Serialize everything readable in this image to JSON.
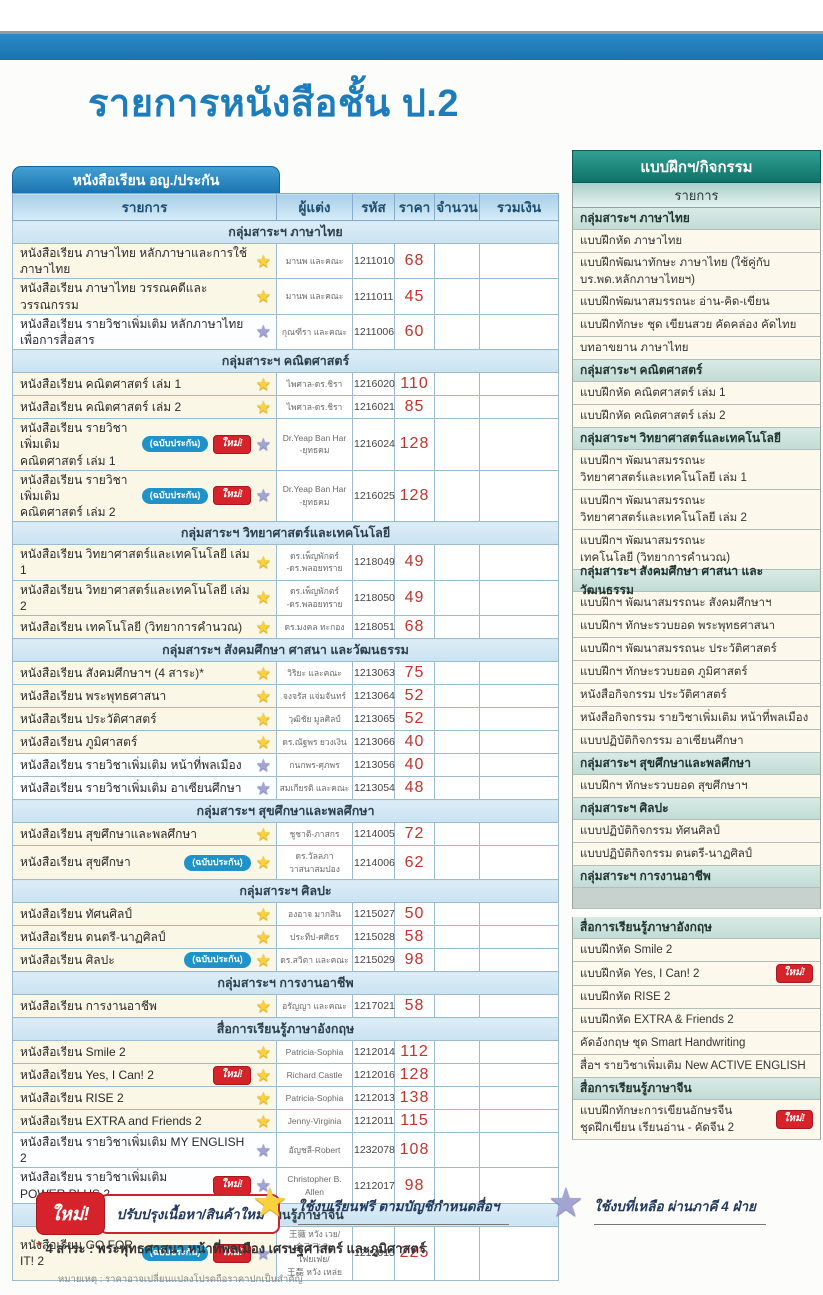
{
  "page": {
    "title": "รายการหนังสือชั้น ป.2"
  },
  "colors": {
    "primary_blue": "#1d7cba",
    "tab_blue": "#1b74b0",
    "group_row_blue": "#cde4f2",
    "cream_row": "#fbf7e7",
    "price_red": "#c2342e",
    "teal_header": "#0f7268",
    "new_badge_red": "#d6222b",
    "insured_badge_blue": "#1f93c9",
    "star_yellow": "#f7d23c",
    "star_purple": "#a2a4d2"
  },
  "main_table": {
    "tab_label": "หนังสือเรียน อญ./ประกัน",
    "columns": [
      "รายการ",
      "ผู้แต่ง",
      "รหัส",
      "ราคา",
      "จำนวน",
      "รวมเงิน"
    ],
    "badge_labels": {
      "insured": "(ฉบับประกัน)",
      "new": "ใหม่!"
    },
    "sections": [
      {
        "header": "กลุ่มสาระฯ ภาษาไทย",
        "rows": [
          {
            "name": "หนังสือเรียน ภาษาไทย หลักภาษาและการใช้ภาษาไทย",
            "star": "yellow",
            "badges": [],
            "author": "มานพ และคณะ",
            "code": "1211010",
            "price": "68",
            "bg": "cream",
            "h": "s"
          },
          {
            "name": "หนังสือเรียน ภาษาไทย วรรณคดีและวรรณกรรม",
            "star": "yellow",
            "badges": [],
            "author": "มานพ และคณะ",
            "code": "1211011",
            "price": "45",
            "bg": "cream",
            "h": "s"
          },
          {
            "name": "หนังสือเรียน รายวิชาเพิ่มเติม หลักภาษาไทยเพื่อการสื่อสาร",
            "star": "purple",
            "badges": [],
            "author": "กุณฑีรา และคณะ",
            "code": "1211006",
            "price": "60",
            "bg": "white",
            "h": "s"
          }
        ]
      },
      {
        "header": "กลุ่มสาระฯ คณิตศาสตร์",
        "rows": [
          {
            "name": "หนังสือเรียน คณิตศาสตร์ เล่ม 1",
            "star": "yellow",
            "badges": [],
            "author": "ไพศาล-ดร.ชิรา",
            "code": "1216020",
            "price": "110",
            "bg": "cream",
            "h": "s"
          },
          {
            "name": "หนังสือเรียน คณิตศาสตร์ เล่ม 2",
            "star": "yellow",
            "badges": [],
            "author": "ไพศาล-ดร.ชิรา",
            "code": "1216021",
            "price": "85",
            "bg": "cream",
            "h": "s"
          },
          {
            "name": "หนังสือเรียน รายวิชาเพิ่มเติม\nคณิตศาสตร์ เล่ม 1",
            "star": "purple",
            "badges": [
              "insured",
              "new"
            ],
            "author": "Dr.Yeap Ban Har\n-ยุทธคม",
            "code": "1216024",
            "price": "128",
            "bg": "cream",
            "h": "t"
          },
          {
            "name": "หนังสือเรียน รายวิชาเพิ่มเติม\nคณิตศาสตร์ เล่ม 2",
            "star": "purple",
            "badges": [
              "insured",
              "new"
            ],
            "author": "Dr.Yeap Ban Har\n-ยุทธคม",
            "code": "1216025",
            "price": "128",
            "bg": "cream",
            "h": "t"
          }
        ]
      },
      {
        "header": "กลุ่มสาระฯ วิทยาศาสตร์และเทคโนโลยี",
        "rows": [
          {
            "name": "หนังสือเรียน วิทยาศาสตร์และเทคโนโลยี เล่ม 1",
            "star": "yellow",
            "badges": [],
            "author": "ดร.เพ็ญพักตร์\n-ดร.พลอยทราย",
            "code": "1218049",
            "price": "49",
            "bg": "cream",
            "h": "m"
          },
          {
            "name": "หนังสือเรียน วิทยาศาสตร์และเทคโนโลยี เล่ม 2",
            "star": "yellow",
            "badges": [],
            "author": "ดร.เพ็ญพักตร์\n-ดร.พลอยทราย",
            "code": "1218050",
            "price": "49",
            "bg": "cream",
            "h": "m"
          },
          {
            "name": "หนังสือเรียน เทคโนโลยี (วิทยาการคำนวณ)",
            "star": "yellow",
            "badges": [],
            "author": "ดร.มงคล ทะกอง",
            "code": "1218051",
            "price": "68",
            "bg": "cream",
            "h": "s"
          }
        ]
      },
      {
        "header": "กลุ่มสาระฯ สังคมศึกษา ศาสนา และวัฒนธรรม",
        "rows": [
          {
            "name": "หนังสือเรียน สังคมศึกษาฯ (4 สาระ)*",
            "star": "yellow",
            "badges": [],
            "author": "วิริยะ และคณะ",
            "code": "1213063",
            "price": "75",
            "bg": "cream",
            "h": "s"
          },
          {
            "name": "หนังสือเรียน พระพุทธศาสนา",
            "star": "yellow",
            "badges": [],
            "author": "จงจรัส แจ่มจันทร์",
            "code": "1213064",
            "price": "52",
            "bg": "cream",
            "h": "s"
          },
          {
            "name": "หนังสือเรียน ประวัติศาสตร์",
            "star": "yellow",
            "badges": [],
            "author": "วุฒิชัย มูลศิลป์",
            "code": "1213065",
            "price": "52",
            "bg": "cream",
            "h": "s"
          },
          {
            "name": "หนังสือเรียน ภูมิศาสตร์",
            "star": "yellow",
            "badges": [],
            "author": "ดร.ณัฐพร ยวงเงิน",
            "code": "1213066",
            "price": "40",
            "bg": "cream",
            "h": "s"
          },
          {
            "name": "หนังสือเรียน รายวิชาเพิ่มเติม หน้าที่พลเมือง",
            "star": "purple",
            "badges": [],
            "author": "กนกพร-ศุภพร",
            "code": "1213056",
            "price": "40",
            "bg": "white",
            "h": "s"
          },
          {
            "name": "หนังสือเรียน รายวิชาเพิ่มเติม อาเซียนศึกษา",
            "star": "purple",
            "badges": [],
            "author": "สมเกียรติ และคณะ",
            "code": "1213054",
            "price": "48",
            "bg": "white",
            "h": "s"
          }
        ]
      },
      {
        "header": "กลุ่มสาระฯ สุขศึกษาและพลศึกษา",
        "rows": [
          {
            "name": "หนังสือเรียน สุขศึกษาและพลศึกษา",
            "star": "yellow",
            "badges": [],
            "author": "ชูชาติ-ภาสกร",
            "code": "1214005",
            "price": "72",
            "bg": "cream",
            "h": "s"
          },
          {
            "name": "หนังสือเรียน สุขศึกษา",
            "star": "yellow",
            "badges": [
              "insured"
            ],
            "author": "ดร.วัลลภา\nวาสนาสมปอง",
            "code": "1214006",
            "price": "62",
            "bg": "cream",
            "h": "m"
          }
        ]
      },
      {
        "header": "กลุ่มสาระฯ ศิลปะ",
        "rows": [
          {
            "name": "หนังสือเรียน ทัศนศิลป์",
            "star": "yellow",
            "badges": [],
            "author": "องอาจ มากสิน",
            "code": "1215027",
            "price": "50",
            "bg": "cream",
            "h": "s"
          },
          {
            "name": "หนังสือเรียน ดนตรี-นาฏศิลป์",
            "star": "yellow",
            "badges": [],
            "author": "ประทีป-ศศิธร",
            "code": "1215028",
            "price": "58",
            "bg": "cream",
            "h": "s"
          },
          {
            "name": "หนังสือเรียน ศิลปะ",
            "star": "yellow",
            "badges": [
              "insured"
            ],
            "author": "ดร.สวิตา และคณะ",
            "code": "1215029",
            "price": "98",
            "bg": "cream",
            "h": "s"
          }
        ]
      },
      {
        "header": "กลุ่มสาระฯ การงานอาชีพ",
        "rows": [
          {
            "name": "หนังสือเรียน การงานอาชีพ",
            "star": "yellow",
            "badges": [],
            "author": "อรัญญา และคณะ",
            "code": "1217021",
            "price": "58",
            "bg": "cream",
            "h": "s"
          }
        ]
      },
      {
        "header": "สื่อการเรียนรู้ภาษาอังกฤษ",
        "rows": [
          {
            "name": "หนังสือเรียน Smile 2",
            "star": "yellow",
            "badges": [],
            "author": "Patricia-Sophia",
            "code": "1212014",
            "price": "112",
            "bg": "cream",
            "h": "s"
          },
          {
            "name": "หนังสือเรียน Yes, I Can! 2",
            "star": "yellow",
            "badges": [
              "new"
            ],
            "author": "Richard Castle",
            "code": "1212016",
            "price": "128",
            "bg": "cream",
            "h": "s"
          },
          {
            "name": "หนังสือเรียน RISE 2",
            "star": "yellow",
            "badges": [],
            "author": "Patricia-Sophia",
            "code": "1212013",
            "price": "138",
            "bg": "cream",
            "h": "s"
          },
          {
            "name": "หนังสือเรียน EXTRA and Friends 2",
            "star": "yellow",
            "badges": [],
            "author": "Jenny-Virginia",
            "code": "1212011",
            "price": "115",
            "bg": "cream",
            "h": "s"
          },
          {
            "name": "หนังสือเรียน รายวิชาเพิ่มเติม MY ENGLISH 2",
            "star": "purple",
            "badges": [],
            "author": "อัญชลี-Robert",
            "code": "1232078",
            "price": "108",
            "bg": "white",
            "h": "s"
          },
          {
            "name": "หนังสือเรียน รายวิชาเพิ่มเติม POWER PLUS 2",
            "star": "purple",
            "badges": [
              "new"
            ],
            "author": "Christopher B. Allen",
            "code": "1212017",
            "price": "98",
            "bg": "white",
            "h": "s"
          }
        ]
      },
      {
        "header": "สื่อการเรียนรู้ภาษาจีน",
        "rows": [
          {
            "name": "หนังสือเรียน GO FOR IT! 2",
            "star": "purple",
            "badges": [
              "insured",
              "new"
            ],
            "author": "王薇 หวัง เวย/\n金飞飞 จิน เฟยเฟย/\n王磊 หวัง เหล่ย",
            "code": "1212015",
            "price": "225",
            "bg": "cream",
            "h": "x"
          }
        ]
      }
    ]
  },
  "sidebar": {
    "title": "แบบฝึกฯ/กิจกรรม",
    "column_label": "รายการ",
    "new_badge_label": "ใหม่!",
    "sections": [
      {
        "header": "กลุ่มสาระฯ ภาษาไทย",
        "items": [
          {
            "label": "แบบฝึกหัด ภาษาไทย"
          },
          {
            "label": "แบบฝึกพัฒนาทักษะ ภาษาไทย (ใช้คู่กับบร.พด.หลักภาษาไทยฯ)"
          },
          {
            "label": "แบบฝึกพัฒนาสมรรถนะ อ่าน-คิด-เขียน"
          },
          {
            "label": "แบบฝึกทักษะ ชุด เขียนสวย คัดคล่อง คัดไทย"
          },
          {
            "label": "บทอาขยาน ภาษาไทย"
          }
        ]
      },
      {
        "header": "กลุ่มสาระฯ คณิตศาสตร์",
        "items": [
          {
            "label": "แบบฝึกหัด คณิตศาสตร์ เล่ม 1"
          },
          {
            "label": "แบบฝึกหัด คณิตศาสตร์ เล่ม 2"
          }
        ]
      },
      {
        "header": "กลุ่มสาระฯ วิทยาศาสตร์และเทคโนโลยี",
        "items": [
          {
            "label": "แบบฝึกฯ พัฒนาสมรรถนะ\nวิทยาศาสตร์และเทคโนโลยี เล่ม 1",
            "two_line": true
          },
          {
            "label": "แบบฝึกฯ พัฒนาสมรรถนะ\nวิทยาศาสตร์และเทคโนโลยี เล่ม 2",
            "two_line": true
          },
          {
            "label": "แบบฝึกฯ พัฒนาสมรรถนะ\nเทคโนโลยี (วิทยาการคำนวณ)",
            "two_line": true
          }
        ]
      },
      {
        "header": "กลุ่มสาระฯ สังคมศึกษา ศาสนา และวัฒนธรรม",
        "items": [
          {
            "label": "แบบฝึกฯ พัฒนาสมรรถนะ สังคมศึกษาฯ"
          },
          {
            "label": "แบบฝึกฯ ทักษะรวบยอด พระพุทธศาสนา"
          },
          {
            "label": "แบบฝึกฯ พัฒนาสมรรถนะ ประวัติศาสตร์"
          },
          {
            "label": "แบบฝึกฯ ทักษะรวบยอด ภูมิศาสตร์"
          },
          {
            "label": "หนังสือกิจกรรม ประวัติศาสตร์"
          },
          {
            "label": "หนังสือกิจกรรม รายวิชาเพิ่มเติม หน้าที่พลเมือง"
          },
          {
            "label": "แบบปฏิบัติกิจกรรม อาเซียนศึกษา"
          }
        ]
      },
      {
        "header": "กลุ่มสาระฯ สุขศึกษาและพลศึกษา",
        "items": [
          {
            "label": "แบบฝึกฯ ทักษะรวบยอด สุขศึกษาฯ"
          }
        ]
      },
      {
        "header": "กลุ่มสาระฯ ศิลปะ",
        "items": [
          {
            "label": "แบบปฏิบัติกิจกรรม ทัศนศิลป์"
          },
          {
            "label": "แบบปฏิบัติกิจกรรม ดนตรี-นาฏศิลป์"
          }
        ]
      },
      {
        "header": "กลุ่มสาระฯ การงานอาชีพ",
        "items": [
          {
            "spacer": true
          }
        ]
      },
      {
        "header": "สื่อการเรียนรู้ภาษาอังกฤษ",
        "gap_before": true,
        "items": [
          {
            "label": "แบบฝึกหัด Smile 2"
          },
          {
            "label": "แบบฝึกหัด Yes, I Can! 2",
            "badge": "new"
          },
          {
            "label": "แบบฝึกหัด RISE 2"
          },
          {
            "label": "แบบฝึกหัด EXTRA & Friends 2"
          },
          {
            "label": "คัดอังกฤษ ชุด Smart Handwriting"
          },
          {
            "label": "สื่อฯ รายวิชาเพิ่มเติม New ACTIVE ENGLISH"
          }
        ]
      },
      {
        "header": "สื่อการเรียนรู้ภาษาจีน",
        "items": [
          {
            "label": "แบบฝึกทักษะการเขียนอักษรจีน\nชุดฝึกเขียน เรียนอ่าน - คัดจีน 2",
            "two_line": true,
            "badge": "new"
          }
        ]
      }
    ]
  },
  "legend": {
    "new_label": "ใหม่!",
    "new_desc": "ปรับปรุงเนื้อหา/สินค้าใหม่",
    "yellow_star_desc": "ใช้งบเรียนฟรี ตามบัญชีกำหนดสื่อฯ",
    "purple_star_desc": "ใช้งบที่เหลือ ผ่านภาคี 4 ฝ่าย"
  },
  "footnotes": {
    "asterisk": "*",
    "four_sara": "4 สาระ : พระพุทธศาสนา หน้าที่พลเมือง เศรษฐศาสตร์ และภูมิศาสตร์",
    "note": "หมายเหตุ : ราคาอาจเปลี่ยนแปลงโปรดถือราคาปกเป็นสำคัญ"
  }
}
